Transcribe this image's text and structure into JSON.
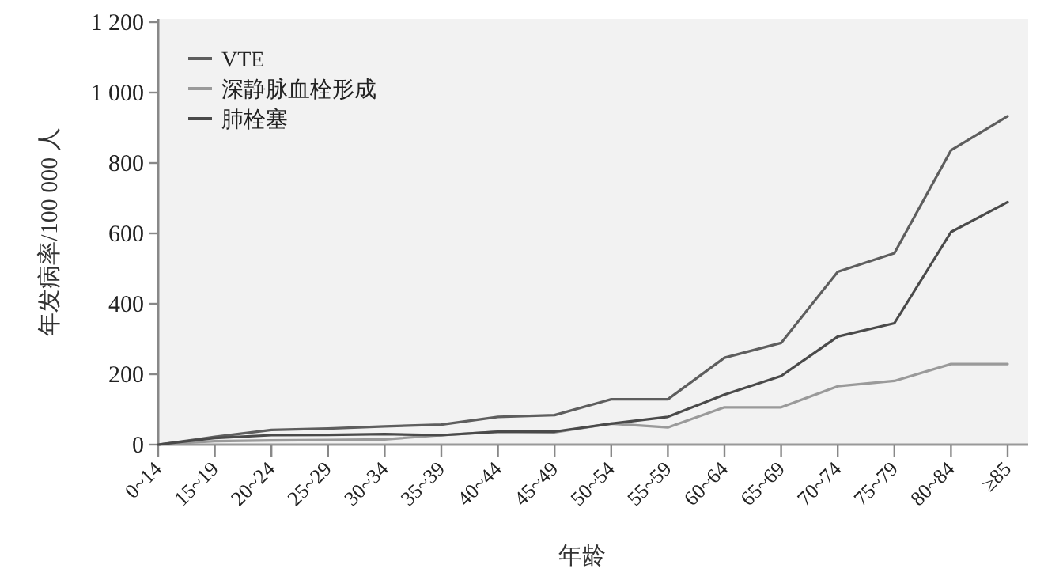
{
  "chart_data": {
    "type": "line",
    "xlabel": "年龄",
    "ylabel": "年发病率/100 000 人",
    "categories": [
      "0~14",
      "15~19",
      "20~24",
      "25~29",
      "30~34",
      "35~39",
      "40~44",
      "45~49",
      "50~54",
      "55~59",
      "60~64",
      "65~69",
      "70~74",
      "75~79",
      "80~84",
      "≥85"
    ],
    "series": [
      {
        "name": "VTE",
        "color": "#5e5e5e",
        "values": [
          0,
          22,
          42,
          46,
          52,
          57,
          79,
          84,
          129,
          129,
          247,
          289,
          491,
          544,
          836,
          933
        ]
      },
      {
        "name": "深静脉血栓形成",
        "color": "#9a9a9a",
        "values": [
          0,
          10,
          12,
          13,
          15,
          27,
          37,
          35,
          60,
          49,
          106,
          106,
          166,
          181,
          229,
          229
        ]
      },
      {
        "name": "肺栓塞",
        "color": "#4a4a4a",
        "values": [
          0,
          19,
          27,
          28,
          30,
          27,
          37,
          37,
          60,
          79,
          142,
          195,
          307,
          345,
          604,
          689
        ]
      }
    ],
    "ylim": [
      0,
      1200
    ],
    "yticks": [
      0,
      200,
      400,
      600,
      800,
      {
        "value": 1000,
        "label": "1 000"
      },
      {
        "value": 1200,
        "label": "1 200"
      }
    ],
    "grid": false,
    "legend": "top left",
    "marker": "none",
    "line_style": "solid"
  }
}
